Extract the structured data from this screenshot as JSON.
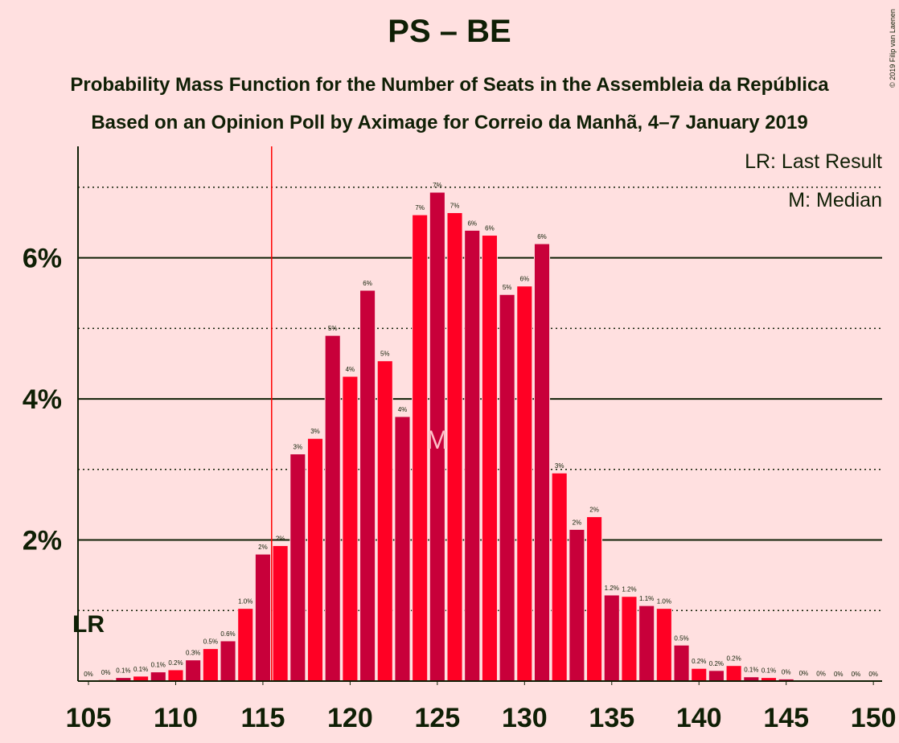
{
  "chart_data": {
    "type": "bar",
    "title": "PS – BE",
    "subtitle": "Probability Mass Function for the Number of Seats in the Assembleia da República",
    "subtitle2": "Based on an Opinion Poll by Aximage for Correio da Manhã, 4–7 January 2019",
    "copyright": "© 2019 Filip van Laenen",
    "legend": [
      "LR: Last Result",
      "M: Median"
    ],
    "last_result": 116,
    "last_result_label": "LR",
    "median": 125,
    "median_label": "M",
    "x": [
      105,
      106,
      107,
      108,
      109,
      110,
      111,
      112,
      113,
      114,
      115,
      116,
      117,
      118,
      119,
      120,
      121,
      122,
      123,
      124,
      125,
      126,
      127,
      128,
      129,
      130,
      131,
      132,
      133,
      134,
      135,
      136,
      137,
      138,
      139,
      140,
      141,
      142,
      143,
      144,
      145,
      146,
      147,
      148,
      149,
      150
    ],
    "values": [
      0,
      0.02,
      0.05,
      0.07,
      0.13,
      0.16,
      0.3,
      0.46,
      0.57,
      1.03,
      1.8,
      1.92,
      3.22,
      3.44,
      4.9,
      4.32,
      5.54,
      4.54,
      3.75,
      6.61,
      6.93,
      6.64,
      6.39,
      6.32,
      5.48,
      5.6,
      6.2,
      2.95,
      2.15,
      2.33,
      1.22,
      1.2,
      1.07,
      1.03,
      0.51,
      0.18,
      0.15,
      0.22,
      0.06,
      0.05,
      0.03,
      0.01,
      0.004,
      0,
      0,
      0
    ],
    "value_labels": [
      "0%",
      "0%",
      "0.1%",
      "0.1%",
      "0.1%",
      "0.2%",
      "0.3%",
      "0.5%",
      "0.6%",
      "1.0%",
      "2%",
      "2%",
      "3%",
      "3%",
      "5%",
      "4%",
      "6%",
      "5%",
      "4%",
      "7%",
      "7%",
      "7%",
      "6%",
      "6%",
      "5%",
      "6%",
      "6%",
      "3%",
      "2%",
      "2%",
      "1.2%",
      "1.2%",
      "1.1%",
      "1.0%",
      "0.5%",
      "0.2%",
      "0.2%",
      "0.2%",
      "0.1%",
      "0.1%",
      "0%",
      "0%",
      "0%",
      "0%",
      "0%",
      "0%"
    ],
    "colors": [
      "#c8003a",
      "#ff0024"
    ],
    "xlim": [
      104.4,
      150.5
    ],
    "xticks": [
      105,
      110,
      115,
      120,
      125,
      130,
      135,
      140,
      145,
      150
    ],
    "ylim": [
      0,
      7.58
    ],
    "yticks": [
      {
        "value": 2,
        "label": "2%"
      },
      {
        "value": 4,
        "label": "4%"
      },
      {
        "value": 6,
        "label": "6%"
      }
    ],
    "minor_yticks": [
      1,
      3,
      5,
      7
    ]
  }
}
